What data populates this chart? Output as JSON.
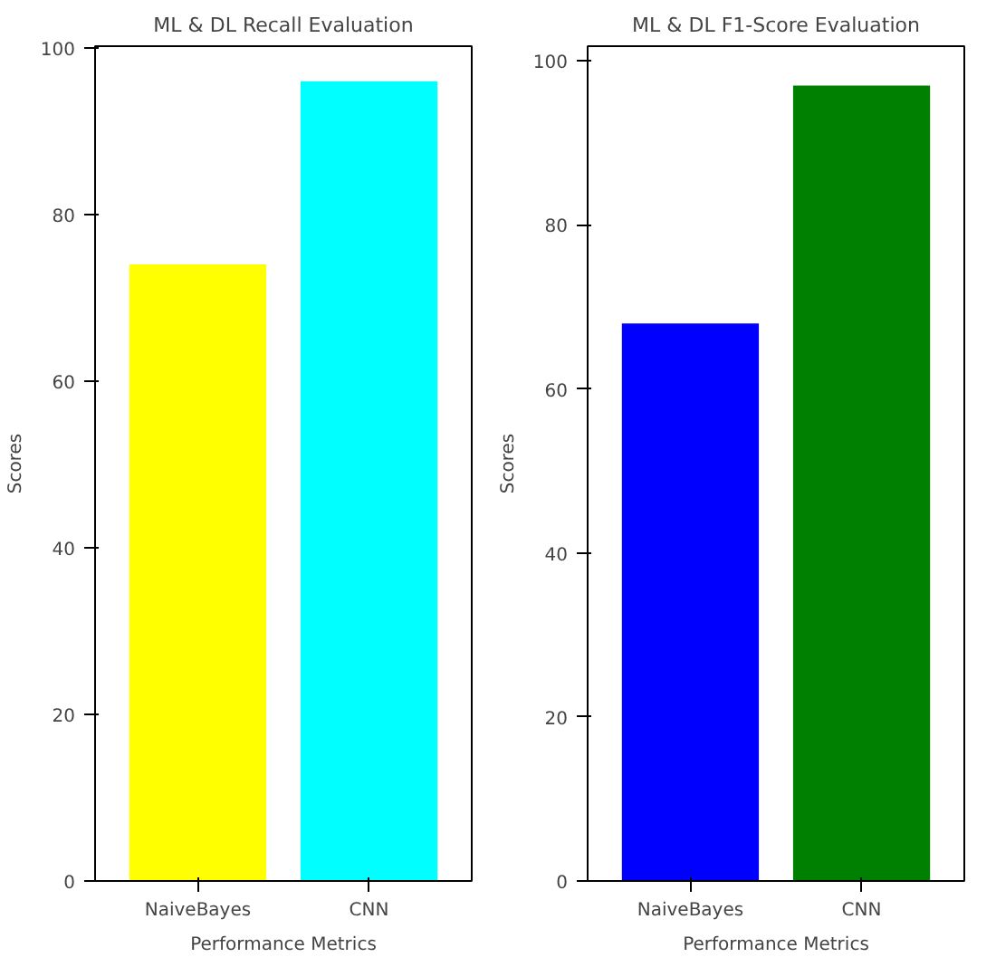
{
  "chart_data": [
    {
      "type": "bar",
      "title": "ML & DL Recall Evaluation",
      "xlabel": "Performance Metrics",
      "ylabel": "Scores",
      "categories": [
        "NaiveBayes",
        "CNN"
      ],
      "values": [
        74,
        96
      ],
      "colors": [
        "#ffff00",
        "#00ffff"
      ],
      "ylim": [
        0,
        100.2
      ],
      "yticks": [
        0,
        20,
        40,
        60,
        80,
        100
      ],
      "grid": false,
      "legend": false
    },
    {
      "type": "bar",
      "title": "ML & DL F1-Score Evaluation",
      "xlabel": "Performance Metrics",
      "ylabel": "Scores",
      "categories": [
        "NaiveBayes",
        "CNN"
      ],
      "values": [
        68,
        97
      ],
      "colors": [
        "#0000ff",
        "#008000"
      ],
      "ylim": [
        0,
        101.8
      ],
      "yticks": [
        0,
        20,
        40,
        60,
        80,
        100
      ],
      "grid": false,
      "legend": false
    }
  ]
}
